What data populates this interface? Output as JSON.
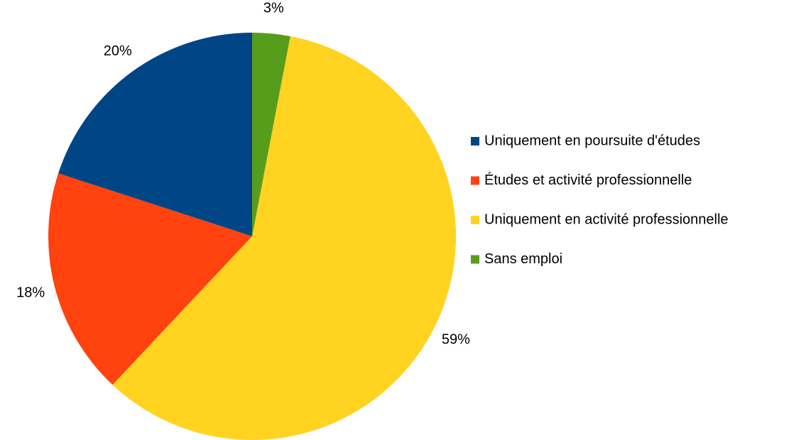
{
  "chart_data": {
    "type": "pie",
    "categories": [
      "Uniquement en poursuite d'études",
      "Études et activité professionnelle",
      "Uniquement en activité professionnelle",
      "Sans emploi"
    ],
    "values": [
      20,
      18,
      59,
      3
    ],
    "value_labels": [
      "20%",
      "18%",
      "59%",
      "3%"
    ],
    "colors": [
      "#004586",
      "#ff420e",
      "#ffd320",
      "#579d1c"
    ],
    "legend": "right"
  }
}
